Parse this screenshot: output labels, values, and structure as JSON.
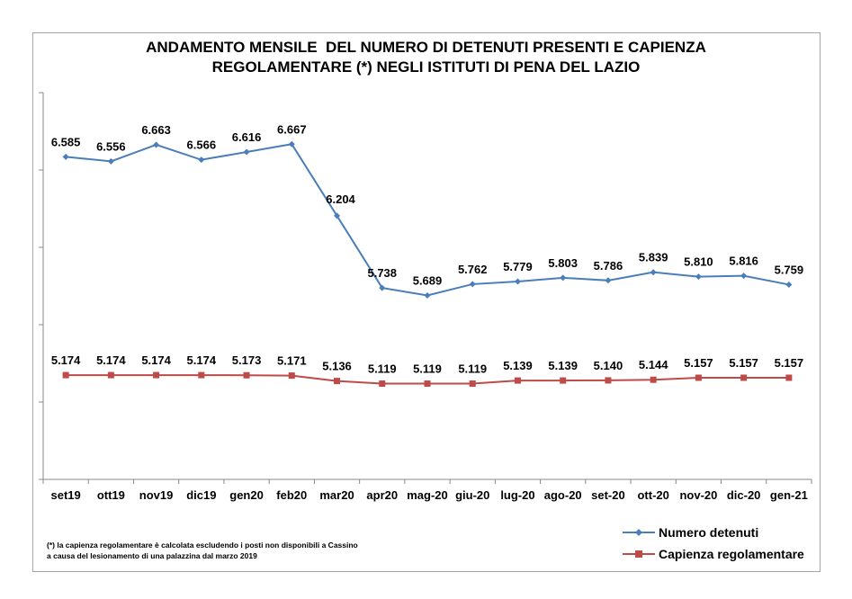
{
  "chart_data": {
    "type": "line",
    "title_lines": [
      "ANDAMENTO MENSILE  DEL NUMERO DI DETENUTI PRESENTI E CAPIENZA",
      "REGOLAMENTARE (*) NEGLI ISTITUTI DI PENA DEL LAZIO"
    ],
    "categories": [
      "set19",
      "ott19",
      "nov19",
      "dic19",
      "gen20",
      "feb20",
      "mar20",
      "apr20",
      "mag-20",
      "giu-20",
      "lug-20",
      "ago-20",
      "set-20",
      "ott-20",
      "nov-20",
      "dic-20",
      "gen-21"
    ],
    "series": [
      {
        "name": "Numero detenuti",
        "color": "#4a7ebb",
        "marker": "diamond",
        "values": [
          6585,
          6556,
          6663,
          6566,
          6616,
          6667,
          6204,
          5738,
          5689,
          5762,
          5779,
          5803,
          5786,
          5839,
          5810,
          5816,
          5759
        ],
        "labels": [
          "6.585",
          "6.556",
          "6.663",
          "6.566",
          "6.616",
          "6.667",
          "6.204",
          "5.738",
          "5.689",
          "5.762",
          "5.779",
          "5.803",
          "5.786",
          "5.839",
          "5.810",
          "5.816",
          "5.759"
        ]
      },
      {
        "name": "Capienza regolamentare",
        "color": "#be4b48",
        "marker": "square",
        "values": [
          5174,
          5174,
          5174,
          5174,
          5173,
          5171,
          5136,
          5119,
          5119,
          5119,
          5139,
          5139,
          5140,
          5144,
          5157,
          5157,
          5157
        ],
        "labels": [
          "5.174",
          "5.174",
          "5.174",
          "5.174",
          "5.173",
          "5.171",
          "5.136",
          "5.119",
          "5.119",
          "5.119",
          "5.139",
          "5.139",
          "5.140",
          "5.144",
          "5.157",
          "5.157",
          "5.157"
        ]
      }
    ],
    "ylim": [
      4500,
      7000
    ],
    "legend_position": "bottom-right",
    "grid": false
  },
  "footnote_lines": [
    "(*) la capienza regolamentare è calcolata escludendo i posti non disponibili a Cassino",
    "a causa del lesionamento di una palazzina dal marzo 2019"
  ]
}
